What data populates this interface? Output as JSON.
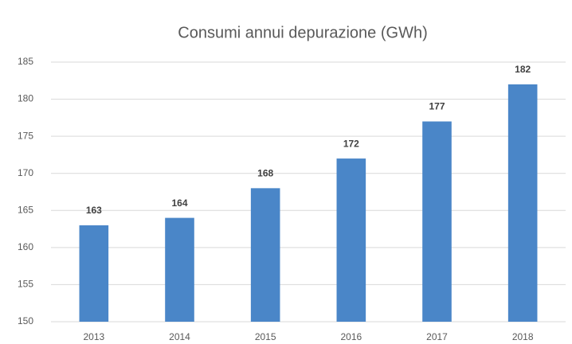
{
  "chart_data": {
    "type": "bar",
    "title": "Consumi annui depurazione (GWh)",
    "categories": [
      "2013",
      "2014",
      "2015",
      "2016",
      "2017",
      "2018"
    ],
    "values": [
      163,
      164,
      168,
      172,
      177,
      182
    ],
    "color": "#4a86c8",
    "ylim": [
      150,
      185
    ],
    "yticks": [
      150,
      155,
      160,
      165,
      170,
      175,
      180,
      185
    ],
    "grid": true
  }
}
